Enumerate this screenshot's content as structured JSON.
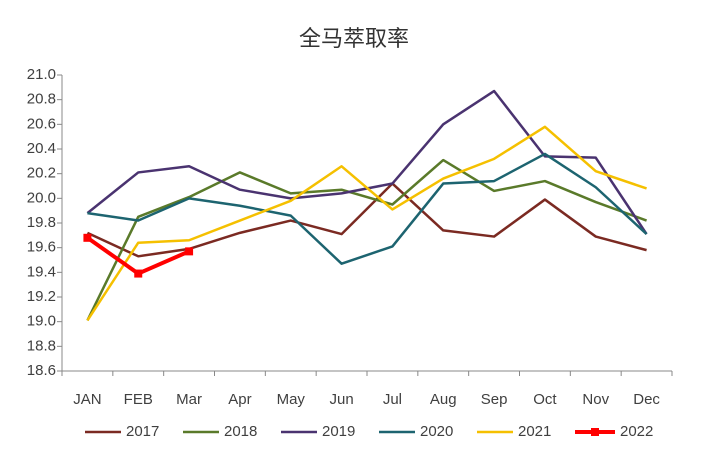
{
  "chart_data": {
    "type": "line",
    "title": "全马萃取率",
    "categories": [
      "JAN",
      "FEB",
      "Mar",
      "Apr",
      "May",
      "Jun",
      "Jul",
      "Aug",
      "Sep",
      "Oct",
      "Nov",
      "Dec"
    ],
    "series": [
      {
        "name": "2017",
        "color": "#7b2a22",
        "width": 2.5,
        "values": [
          19.72,
          19.53,
          19.59,
          19.72,
          19.82,
          19.71,
          20.12,
          19.74,
          19.69,
          19.99,
          19.69,
          19.58
        ]
      },
      {
        "name": "2018",
        "color": "#5a7a2a",
        "width": 2.5,
        "values": [
          19.01,
          19.85,
          20.01,
          20.21,
          20.04,
          20.07,
          19.95,
          20.31,
          20.06,
          20.14,
          19.97,
          19.82
        ]
      },
      {
        "name": "2019",
        "color": "#4a3370",
        "width": 2.5,
        "values": [
          19.88,
          20.21,
          20.26,
          20.07,
          20.0,
          20.04,
          20.12,
          20.6,
          20.87,
          20.34,
          20.33,
          19.71
        ]
      },
      {
        "name": "2020",
        "color": "#1d6470",
        "width": 2.5,
        "values": [
          19.88,
          19.82,
          20.0,
          19.94,
          19.86,
          19.47,
          19.61,
          20.12,
          20.14,
          20.36,
          20.09,
          19.71
        ]
      },
      {
        "name": "2021",
        "color": "#f5c000",
        "width": 2.5,
        "values": [
          19.01,
          19.64,
          19.66,
          19.82,
          19.98,
          20.26,
          19.91,
          20.16,
          20.32,
          20.58,
          20.22,
          20.08
        ]
      },
      {
        "name": "2022",
        "color": "#ff0000",
        "width": 4,
        "marker": "square",
        "values": [
          19.68,
          19.39,
          19.57,
          null,
          null,
          null,
          null,
          null,
          null,
          null,
          null,
          null
        ]
      }
    ],
    "ylim": [
      18.6,
      21.0
    ],
    "yticks": [
      18.6,
      18.8,
      {
        "value": 19.0,
        "label": "19.0"
      },
      19.2,
      19.4,
      19.6,
      19.8,
      {
        "value": 20.0,
        "label": "20.0"
      },
      20.2,
      20.4,
      20.6,
      20.8,
      {
        "value": 21.0,
        "label": "21.0"
      }
    ],
    "grid": false,
    "legend": "bottom"
  }
}
